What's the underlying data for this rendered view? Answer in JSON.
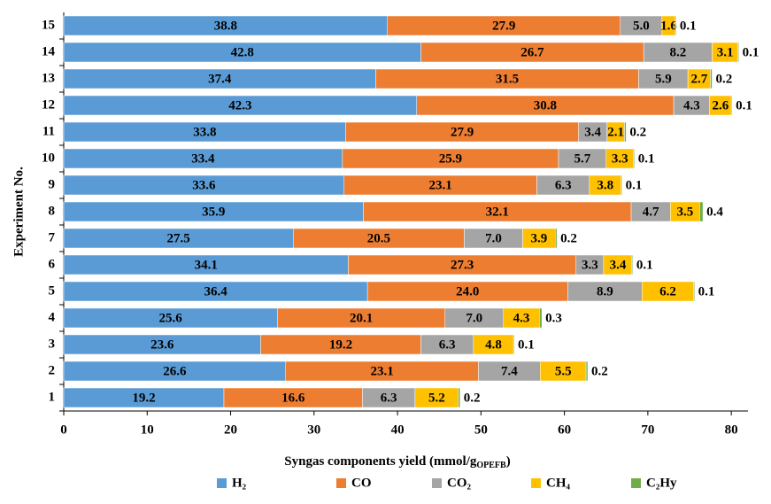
{
  "chart_data": {
    "type": "stacked_barh",
    "ylabel": "Experiment No.",
    "xlabel": [
      "Syngas components yield (mmol/g",
      "OPEFB",
      ")"
    ],
    "categories": [
      "1",
      "2",
      "3",
      "4",
      "5",
      "6",
      "7",
      "8",
      "9",
      "10",
      "11",
      "12",
      "13",
      "14",
      "15"
    ],
    "series": [
      {
        "name": "H₂",
        "color": "#5b9bd5",
        "values": [
          19.2,
          26.6,
          23.6,
          25.6,
          36.4,
          34.1,
          27.5,
          35.9,
          33.6,
          33.4,
          33.8,
          42.3,
          37.4,
          42.8,
          38.8
        ],
        "value_labels": [
          "19.2",
          "26.6",
          "23.6",
          "25.6",
          "36.4",
          "34.1",
          "27.5",
          "35.9",
          "33.6",
          "33.4",
          "33.8",
          "42.3",
          "37.4",
          "42.8",
          "38.8"
        ]
      },
      {
        "name": "CO",
        "color": "#ed7d31",
        "values": [
          16.6,
          23.1,
          19.2,
          20.1,
          24,
          27.3,
          20.5,
          32.1,
          23.1,
          25.9,
          27.9,
          30.8,
          31.5,
          26.7,
          27.9
        ],
        "value_labels": [
          "16.6",
          "23.1",
          "19.2",
          "20.1",
          "24.0",
          "27.3",
          "20.5",
          "32.1",
          "23.1",
          "25.9",
          "27.9",
          "30.8",
          "31.5",
          "26.7",
          "27.9"
        ]
      },
      {
        "name": "CO₂",
        "color": "#a5a5a5",
        "values": [
          6.3,
          7.4,
          6.3,
          7,
          8.9,
          3.3,
          7,
          4.7,
          6.3,
          5.7,
          3.4,
          4.3,
          5.9,
          8.2,
          5
        ],
        "value_labels": [
          "6.3",
          "7.4",
          "6.3",
          "7.0",
          "8.9",
          "3.3",
          "7.0",
          "4.7",
          "6.3",
          "5.7",
          "3.4",
          "4.3",
          "5.9",
          "8.2",
          "5.0"
        ]
      },
      {
        "name": "CH₄",
        "color": "#ffc000",
        "values": [
          5.2,
          5.5,
          4.8,
          4.3,
          6.2,
          3.4,
          3.9,
          3.5,
          3.8,
          3.3,
          2.1,
          2.6,
          2.7,
          3.1,
          1.6
        ],
        "value_labels": [
          "5.2",
          "5.5",
          "4.8",
          "4.3",
          "6.2",
          "3.4",
          "3.9",
          "3.5",
          "3.8",
          "3.3",
          "2.1",
          "2.6",
          "2.7",
          "3.1",
          "1.6"
        ]
      },
      {
        "name": "C₂Hy",
        "color": "#70ad47",
        "values": [
          0.2,
          0.2,
          0.1,
          0.3,
          0.1,
          0.1,
          0.2,
          0.4,
          0.1,
          0.1,
          0.2,
          0.1,
          0.2,
          0.1,
          0.1
        ],
        "value_labels": [
          "0.2",
          "0.2",
          "0.1",
          "0.3",
          "0.1",
          "0.1",
          "0.2",
          "0.4",
          "0.1",
          "0.1",
          "0.2",
          "0.1",
          "0.2",
          "0.1",
          "0.1"
        ]
      }
    ],
    "xlim": [
      0,
      82
    ],
    "xticks": [
      0,
      10,
      20,
      30,
      40,
      50,
      60,
      70,
      80
    ]
  }
}
